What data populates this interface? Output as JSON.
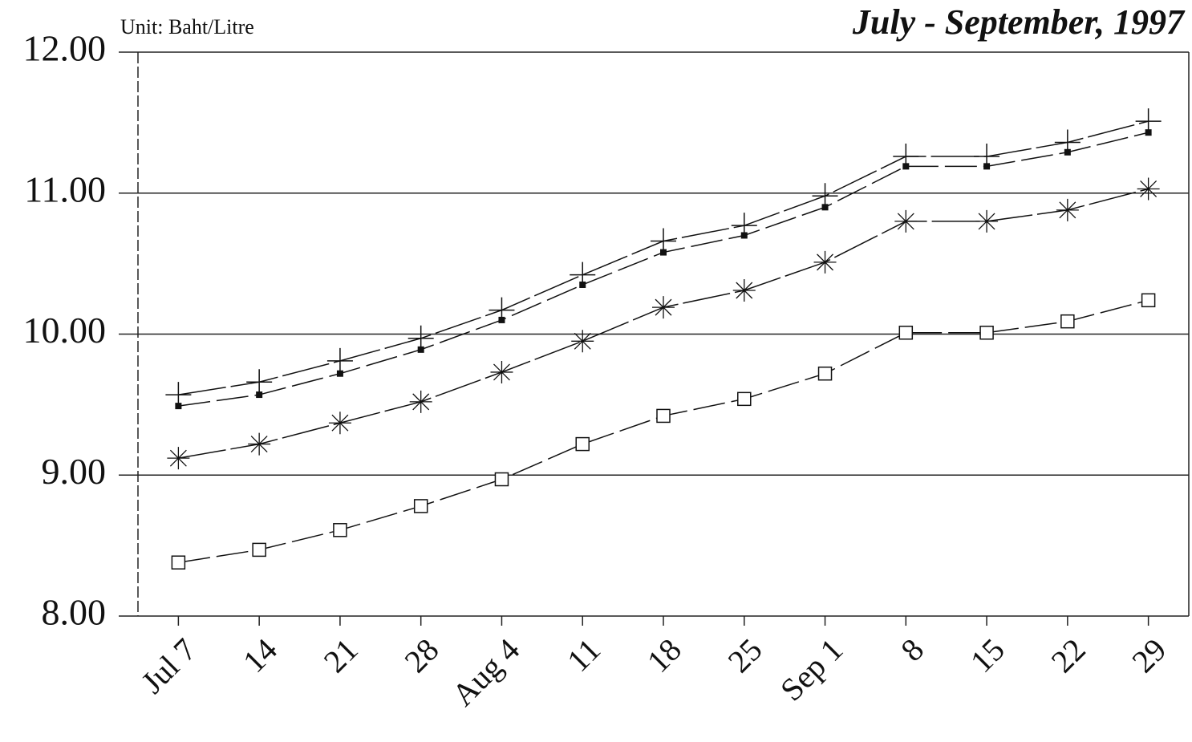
{
  "chart_data": {
    "type": "line",
    "title": "July - September, 1997",
    "subtitle": "Unit: Baht/Litre",
    "categories": [
      "Jul 7",
      "14",
      "21",
      "28",
      "Aug 4",
      "11",
      "18",
      "25",
      "Sep 1",
      "8",
      "15",
      "22",
      "29"
    ],
    "series": [
      {
        "marker": "plus",
        "color": "#111111",
        "values": [
          9.57,
          9.66,
          9.81,
          9.97,
          10.17,
          10.42,
          10.66,
          10.77,
          10.98,
          11.26,
          11.26,
          11.36,
          11.51
        ]
      },
      {
        "marker": "filled-square",
        "color": "#111111",
        "values": [
          9.49,
          9.57,
          9.72,
          9.89,
          10.1,
          10.35,
          10.58,
          10.7,
          10.9,
          11.19,
          11.19,
          11.29,
          11.43
        ]
      },
      {
        "marker": "asterisk",
        "color": "#111111",
        "values": [
          9.12,
          9.22,
          9.37,
          9.52,
          9.73,
          9.95,
          10.19,
          10.31,
          10.51,
          10.8,
          10.8,
          10.88,
          11.03
        ]
      },
      {
        "marker": "open-square",
        "color": "#111111",
        "values": [
          8.38,
          8.47,
          8.61,
          8.78,
          8.97,
          9.22,
          9.42,
          9.54,
          9.72,
          10.01,
          10.01,
          10.09,
          10.24
        ]
      }
    ],
    "ylim": [
      8,
      12
    ],
    "yticks": [
      {
        "value": 8,
        "label": "8.00"
      },
      {
        "value": 9,
        "label": "9.00"
      },
      {
        "value": 10,
        "label": "10.00"
      },
      {
        "value": 11,
        "label": "11.00"
      },
      {
        "value": 12,
        "label": "12.00"
      }
    ],
    "grid": true
  }
}
